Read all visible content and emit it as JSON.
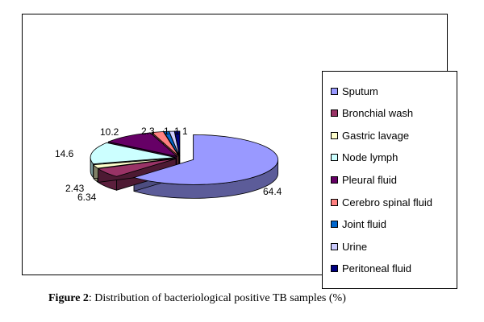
{
  "chart_data": {
    "type": "pie",
    "style": "3d-exploded",
    "title": "",
    "categories": [
      "Sputum",
      "Bronchial wash",
      "Gastric lavage",
      "Node lymph",
      "Pleural fluid",
      "Cerebro spinal fluid",
      "Joint fluid",
      "Urine",
      "Peritoneal fluid"
    ],
    "values": [
      64.4,
      6.34,
      2.43,
      14.6,
      10.2,
      2.3,
      1,
      1,
      1
    ],
    "data_labels": [
      "64.4",
      "6.34",
      "2.43",
      "14.6",
      "10.2",
      "2.3",
      "1",
      "1",
      "1"
    ],
    "colors": [
      "#9999ff",
      "#993366",
      "#ffffcc",
      "#ccffff",
      "#660066",
      "#ff8080",
      "#0066cc",
      "#ccccff",
      "#000080"
    ],
    "legend_position": "right"
  },
  "caption": {
    "label": "Figure 2",
    "text": ": Distribution of bacteriological positive TB samples (%)"
  }
}
